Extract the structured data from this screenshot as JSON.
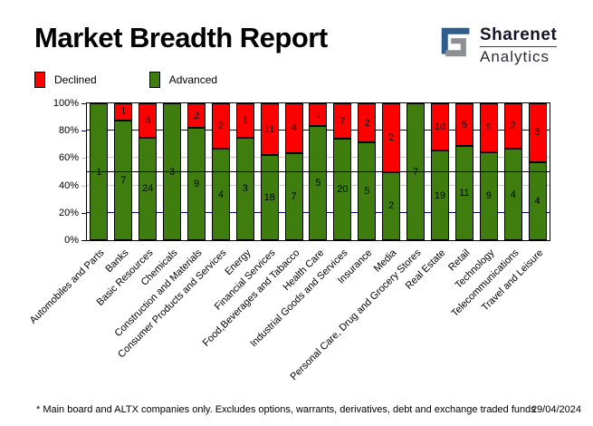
{
  "header": {
    "title": "Market Breadth Report",
    "logo_line1": "Sharenet",
    "logo_line2": "Analytics",
    "logo_blue": "#2d5f8e",
    "logo_gray": "#8d9196"
  },
  "legend": {
    "declined_label": "Declined",
    "advanced_label": "Advanced"
  },
  "chart_data": {
    "type": "bar",
    "stacked": true,
    "value_mode": "percent_stacked_100",
    "title": "Market Breadth Report",
    "categories": [
      "Automobiles and Parts",
      "Banks",
      "Basic Resources",
      "Chemicals",
      "Construction and Materials",
      "Consumer Products and Services",
      "Energy",
      "Financial Services",
      "Food,Beverages and Tabacco",
      "Health Care",
      "Industrial Goods and Services",
      "Insurance",
      "Media",
      "Personal Care, Drug and Grocery Stores",
      "Real Estate",
      "Retail",
      "Technology",
      "Telecommunications",
      "Travel and Leisure"
    ],
    "series": [
      {
        "name": "Advanced",
        "color": "#3f7e0e",
        "values": [
          1,
          7,
          24,
          3,
          9,
          4,
          3,
          18,
          7,
          5,
          20,
          5,
          2,
          7,
          19,
          11,
          9,
          4,
          4
        ]
      },
      {
        "name": "Declined",
        "color": "#ff0000",
        "values": [
          0,
          1,
          8,
          0,
          2,
          2,
          1,
          11,
          4,
          1,
          7,
          2,
          2,
          0,
          10,
          5,
          5,
          2,
          3
        ]
      }
    ],
    "y_ticks": [
      {
        "label": "100%",
        "pct": 100,
        "color": "#000000"
      },
      {
        "label": "80%",
        "pct": 80,
        "color": "#000080"
      },
      {
        "label": "60%",
        "pct": 60,
        "color": "#c0c0c0"
      },
      {
        "label": "40%",
        "pct": 40,
        "color": "#c0c0c0"
      },
      {
        "label": "20%",
        "pct": 20,
        "color": "#000080"
      },
      {
        "label": "0%",
        "pct": 0,
        "color": "#000000"
      }
    ],
    "gridlines": {
      "navy_pct": [
        80,
        20
      ],
      "gray_pct": [
        60,
        40
      ],
      "black_pct": [
        50
      ]
    },
    "grid_colors": {
      "navy": "#000080",
      "gray": "#c8c8c8",
      "black": "#000000"
    },
    "ylim": [
      0,
      100
    ],
    "legend_position": "top-left",
    "xlabel": "",
    "ylabel": ""
  },
  "footer": {
    "note": "* Main board and ALTX companies only. Excludes options, warrants, derivatives, debt and exchange traded funds",
    "date": "29/04/2024"
  }
}
